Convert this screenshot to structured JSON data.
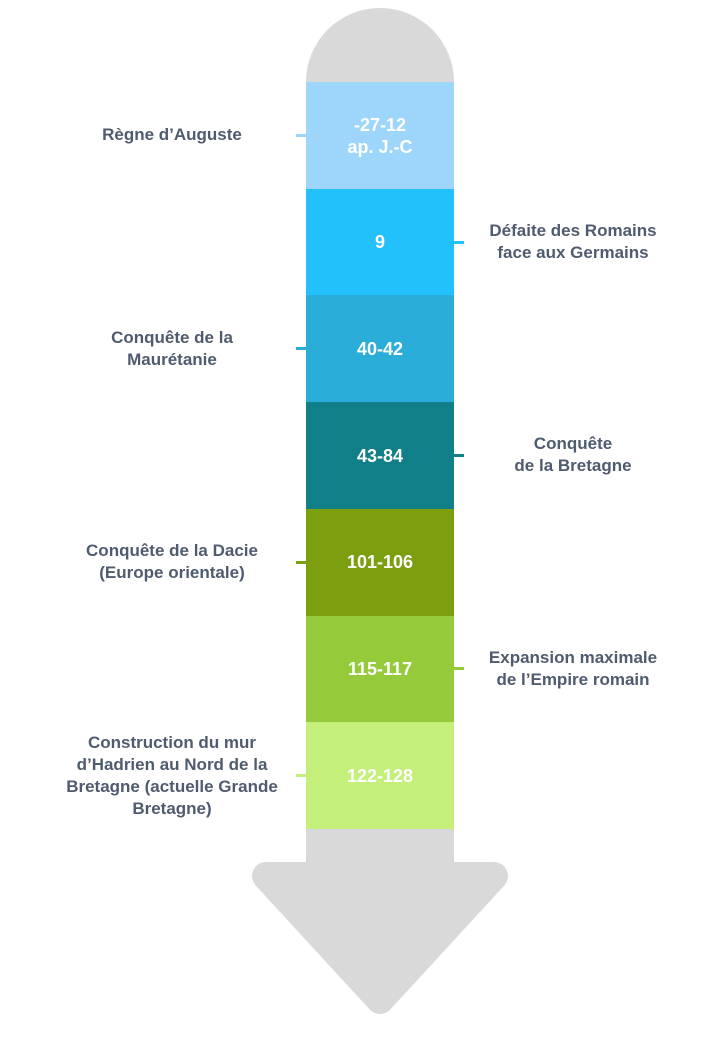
{
  "events": [
    {
      "date": "-27-12\nap. J.-C",
      "label": "Règne d’Auguste",
      "color": "#9dd5fb"
    },
    {
      "date": "9",
      "label": "Défaite des Romains\nface aux Germains",
      "color": "#22c1fc"
    },
    {
      "date": "40-42",
      "label": "Conquête de la\nMaurétanie",
      "color": "#2aaed9"
    },
    {
      "date": "43-84",
      "label": "Conquête\nde la Bretagne",
      "color": "#117f88"
    },
    {
      "date": "101-106",
      "label": "Conquête de la Dacie\n(Europe orientale)",
      "color": "#7b9f0f"
    },
    {
      "date": "115-117",
      "label": "Expansion maximale\nde l’Empire romain",
      "color": "#95cb3a"
    },
    {
      "date": "122-128",
      "label": "Construction du mur\nd’Hadrien au Nord de la\nBretagne (actuelle Grande\nBretagne)",
      "color": "#c4ef7a"
    }
  ]
}
